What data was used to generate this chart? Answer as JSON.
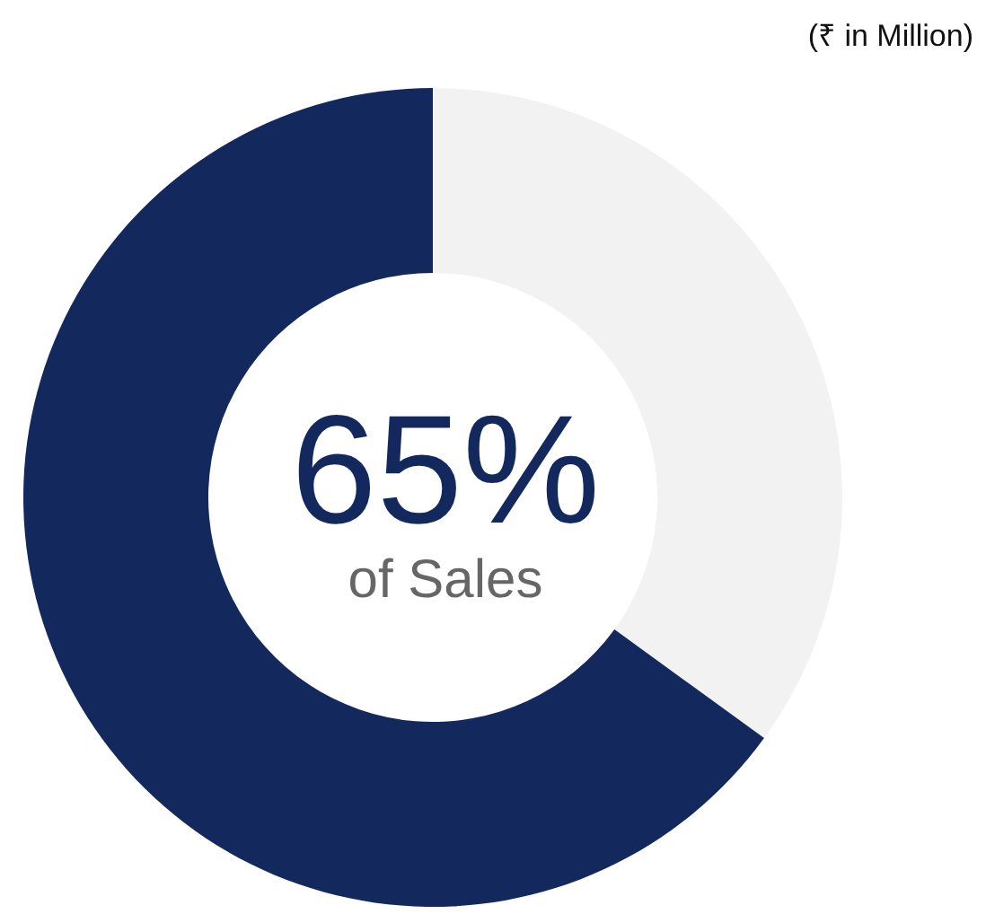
{
  "chart_data": {
    "type": "donut",
    "categories": [
      null,
      null
    ],
    "values": [
      35,
      65
    ],
    "colors": [
      "#f2f2f2",
      "#13285c"
    ],
    "annotations": [
      "65%",
      "of Sales",
      "(₹ in Million)"
    ]
  }
}
